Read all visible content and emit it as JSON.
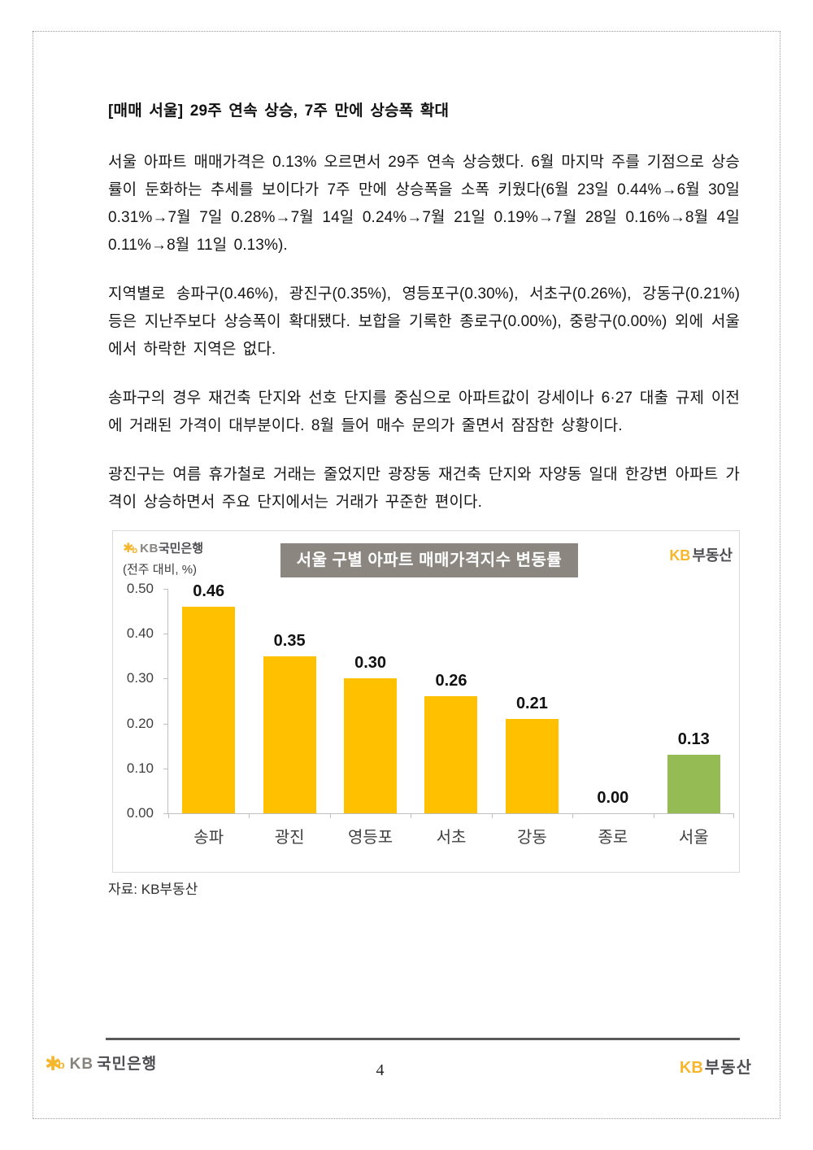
{
  "page": {
    "heading": "[매매 서울] 29주 연속 상승, 7주 만에 상승폭 확대",
    "paragraphs": [
      "서울 아파트 매매가격은 0.13% 오르면서 29주 연속 상승했다. 6월 마지막 주를 기점으로 상승률이 둔화하는 추세를 보이다가 7주 만에 상승폭을 소폭 키웠다(6월 23일 0.44%→6월 30일 0.31%→7월 7일 0.28%→7월 14일 0.24%→7월 21일 0.19%→7월 28일 0.16%→8월 4일 0.11%→8월 11일 0.13%).",
      "지역별로 송파구(0.46%), 광진구(0.35%), 영등포구(0.30%), 서초구(0.26%), 강동구(0.21%) 등은 지난주보다 상승폭이 확대됐다. 보합을 기록한 종로구(0.00%), 중랑구(0.00%) 외에 서울에서 하락한 지역은 없다.",
      "송파구의 경우 재건축 단지와 선호 단지를 중심으로 아파트값이 강세이나 6·27 대출 규제 이전에 거래된 가격이 대부분이다. 8월 들어 매수 문의가 줄면서 잠잠한 상황이다.",
      "광진구는 여름 휴가철로 거래는 줄었지만 광장동 재건축 단지와 자양동 일대 한강변 아파트 가격이 상승하면서 주요 단지에서는 거래가 꾸준한 편이다."
    ],
    "source": "자료: KB부동산",
    "page_number": "4"
  },
  "chart": {
    "logo": {
      "star": "✱",
      "b": "b",
      "kb": "KB",
      "bank": "국민은행"
    },
    "unit_label": "(전주 대비, %)",
    "title": "서울 구별 아파트 매매가격지수 변동률",
    "brand": {
      "kb": "KB",
      "name": "부동산"
    }
  },
  "chart_data": {
    "type": "bar",
    "title": "서울 구별 아파트 매매가격지수 변동률",
    "ylabel": "(전주 대비, %)",
    "categories": [
      "송파",
      "광진",
      "영등포",
      "서초",
      "강동",
      "종로",
      "서울"
    ],
    "values": [
      0.46,
      0.35,
      0.3,
      0.26,
      0.21,
      0.0,
      0.13
    ],
    "value_labels": [
      "0.46",
      "0.35",
      "0.30",
      "0.26",
      "0.21",
      "0.00",
      "0.13"
    ],
    "bar_colors": [
      "#FFC000",
      "#FFC000",
      "#FFC000",
      "#FFC000",
      "#FFC000",
      "#FFC000",
      "#94BB54"
    ],
    "ylim": [
      0,
      0.5
    ],
    "yticks": [
      "0.50",
      "0.40",
      "0.30",
      "0.20",
      "0.10",
      "0.00"
    ],
    "grid": false,
    "legend": "none"
  },
  "footer": {
    "left_logo": {
      "star": "✱",
      "b": "b",
      "kb": "KB",
      "bank": "국민은행"
    },
    "right_logo": {
      "kb": "KB",
      "name": "부동산"
    },
    "page_number": "4"
  },
  "colors": {
    "bar_yellow": "#FFC000",
    "bar_green": "#94BB54",
    "title_box_bg": "#8B8680",
    "kb_yellow": "#F8B62C",
    "footer_line": "#595959"
  }
}
